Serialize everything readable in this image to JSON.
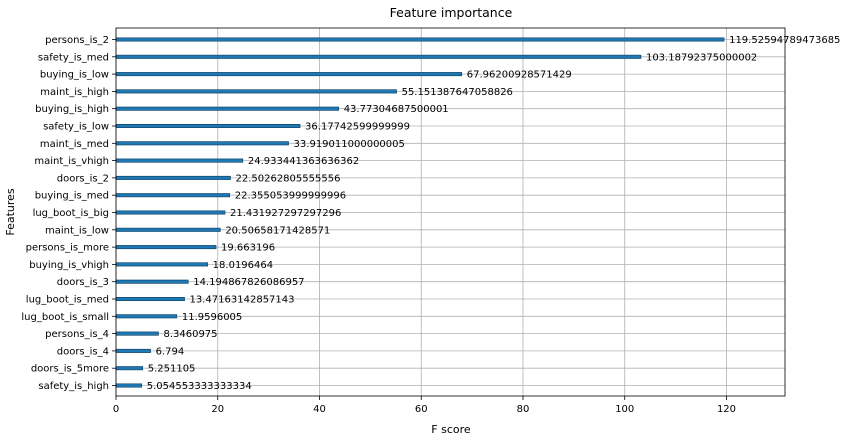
{
  "chart_data": {
    "type": "bar",
    "orientation": "horizontal",
    "title": "Feature importance",
    "xlabel": "F score",
    "ylabel": "Features",
    "xlim": [
      0,
      131.5
    ],
    "xticks": [
      0,
      20,
      40,
      60,
      80,
      100,
      120
    ],
    "grid": true,
    "bar_color": "#1f77b4",
    "categories": [
      "persons_is_2",
      "safety_is_med",
      "buying_is_low",
      "maint_is_high",
      "buying_is_high",
      "safety_is_low",
      "maint_is_med",
      "maint_is_vhigh",
      "doors_is_2",
      "buying_is_med",
      "lug_boot_is_big",
      "maint_is_low",
      "persons_is_more",
      "buying_is_vhigh",
      "doors_is_3",
      "lug_boot_is_med",
      "lug_boot_is_small",
      "persons_is_4",
      "doors_is_4",
      "doors_is_5more",
      "safety_is_high"
    ],
    "values": [
      119.52594789473685,
      103.18792375000002,
      67.96200928571429,
      55.151387647058826,
      43.77304687500001,
      36.17742599999999,
      33.919011000000005,
      24.933441363636362,
      22.50262805555556,
      22.355053999999996,
      21.431927297297296,
      20.50658171428571,
      19.663196,
      18.0196464,
      14.194867826086957,
      13.47163142857143,
      11.9596005,
      8.3460975,
      6.794,
      5.251105,
      5.054553333333334
    ],
    "value_labels": [
      "119.52594789473685",
      "103.18792375000002",
      "67.96200928571429",
      "55.151387647058826",
      "43.77304687500001",
      "36.17742599999999",
      "33.919011000000005",
      "24.933441363636362",
      "22.50262805555556",
      "22.355053999999996",
      "21.431927297297296",
      "20.50658171428571",
      "19.663196",
      "18.0196464",
      "14.194867826086957",
      "13.47163142857143",
      "11.9596005",
      "8.3460975",
      "6.794",
      "5.251105",
      "5.054553333333334"
    ]
  }
}
